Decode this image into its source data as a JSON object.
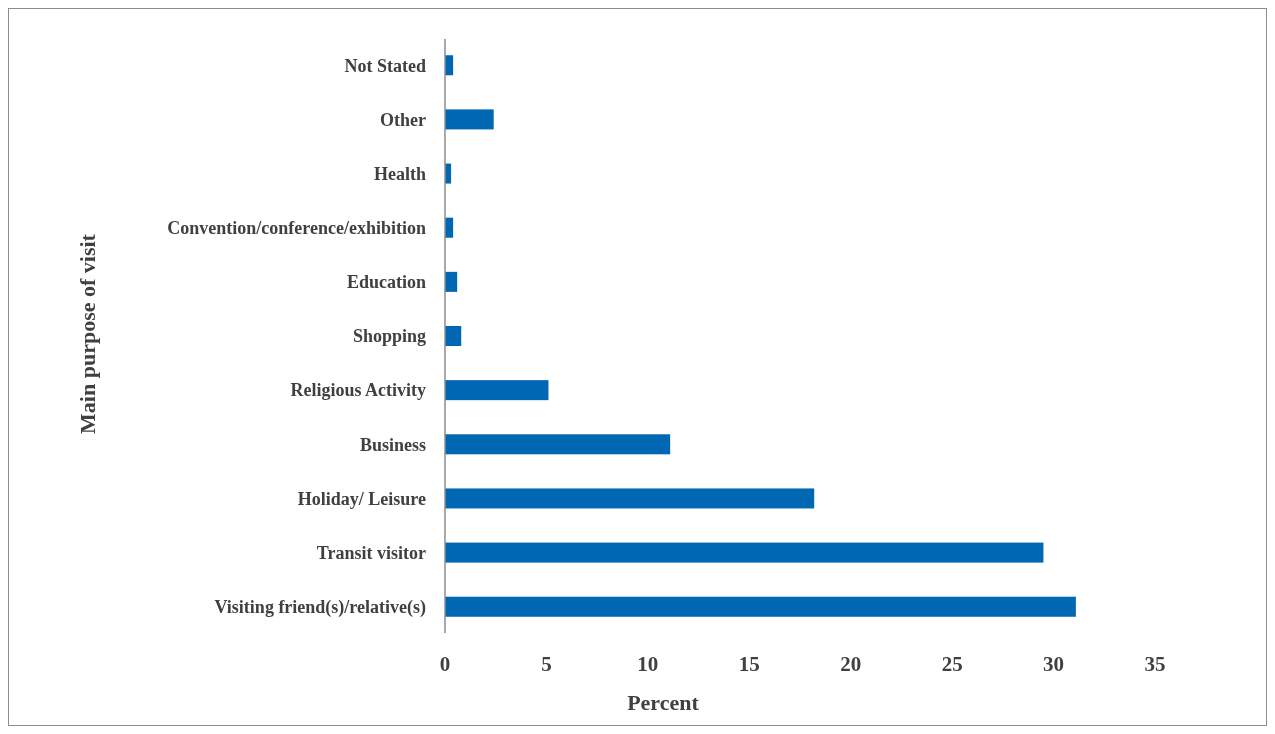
{
  "chart_data": {
    "type": "bar",
    "orientation": "horizontal",
    "xlabel": "Percent",
    "ylabel": "Main purpose of visit",
    "categories": [
      "Not Stated",
      "Other",
      "Health",
      "Convention/conference/exhibition",
      "Education",
      "Shopping",
      "Religious Activity",
      "Business",
      "Holiday/ Leisure",
      "Transit visitor",
      "Visiting friend(s)/relative(s)"
    ],
    "values": [
      0.4,
      2.4,
      0.3,
      0.4,
      0.6,
      0.8,
      5.1,
      11.1,
      18.2,
      29.5,
      31.1
    ],
    "color": "#0068b3",
    "xlim": [
      0,
      35
    ],
    "xticks": [
      0,
      5,
      10,
      15,
      20,
      25,
      30,
      35
    ],
    "grid": false
  }
}
